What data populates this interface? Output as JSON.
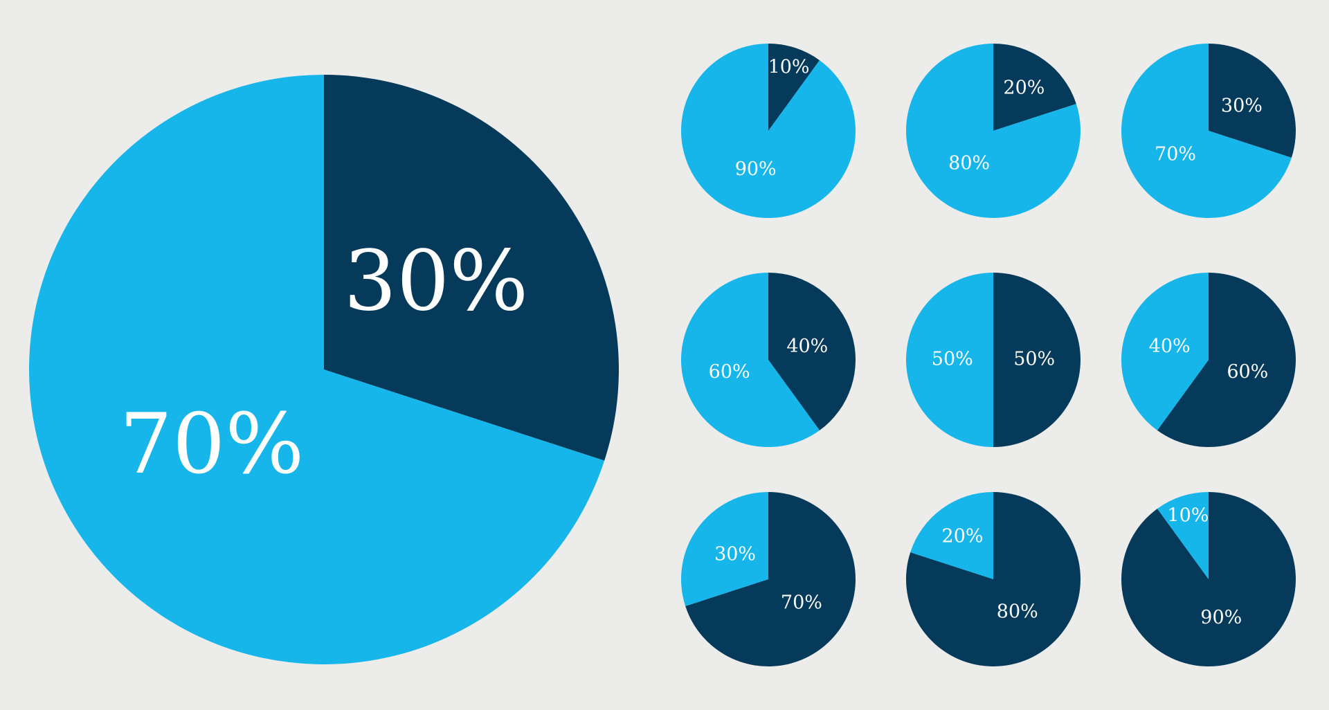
{
  "colors": {
    "background": "#ececea",
    "dark": "#053a5a",
    "light": "#16b5ea",
    "label": "#ffffff"
  },
  "chart_data": [
    {
      "type": "pie",
      "role": "main",
      "slices": [
        {
          "label": "30%",
          "value": 30,
          "color": "#053a5a"
        },
        {
          "label": "70%",
          "value": 70,
          "color": "#16b5ea"
        }
      ]
    },
    {
      "type": "pie",
      "slices": [
        {
          "label": "10%",
          "value": 10,
          "color": "#053a5a"
        },
        {
          "label": "90%",
          "value": 90,
          "color": "#16b5ea"
        }
      ]
    },
    {
      "type": "pie",
      "slices": [
        {
          "label": "20%",
          "value": 20,
          "color": "#053a5a"
        },
        {
          "label": "80%",
          "value": 80,
          "color": "#16b5ea"
        }
      ]
    },
    {
      "type": "pie",
      "slices": [
        {
          "label": "30%",
          "value": 30,
          "color": "#053a5a"
        },
        {
          "label": "70%",
          "value": 70,
          "color": "#16b5ea"
        }
      ]
    },
    {
      "type": "pie",
      "slices": [
        {
          "label": "40%",
          "value": 40,
          "color": "#053a5a"
        },
        {
          "label": "60%",
          "value": 60,
          "color": "#16b5ea"
        }
      ]
    },
    {
      "type": "pie",
      "slices": [
        {
          "label": "50%",
          "value": 50,
          "color": "#053a5a"
        },
        {
          "label": "50%",
          "value": 50,
          "color": "#16b5ea"
        }
      ]
    },
    {
      "type": "pie",
      "slices": [
        {
          "label": "60%",
          "value": 60,
          "color": "#053a5a"
        },
        {
          "label": "40%",
          "value": 40,
          "color": "#16b5ea"
        }
      ]
    },
    {
      "type": "pie",
      "slices": [
        {
          "label": "70%",
          "value": 70,
          "color": "#053a5a"
        },
        {
          "label": "30%",
          "value": 30,
          "color": "#16b5ea"
        }
      ]
    },
    {
      "type": "pie",
      "slices": [
        {
          "label": "80%",
          "value": 80,
          "color": "#053a5a"
        },
        {
          "label": "20%",
          "value": 20,
          "color": "#16b5ea"
        }
      ]
    },
    {
      "type": "pie",
      "slices": [
        {
          "label": "90%",
          "value": 90,
          "color": "#053a5a"
        },
        {
          "label": "10%",
          "value": 10,
          "color": "#16b5ea"
        }
      ]
    }
  ]
}
